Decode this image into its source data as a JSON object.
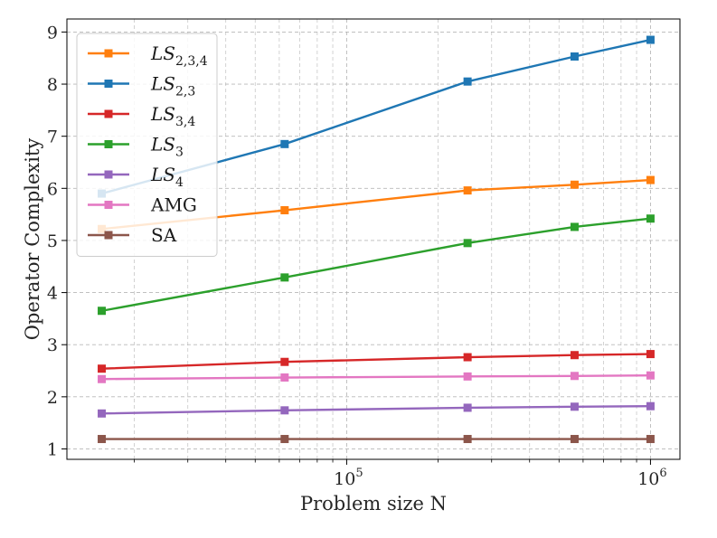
{
  "chart_data": {
    "type": "line",
    "xscale": "log",
    "xlabel": "Problem size N",
    "ylabel": "Operator Complexity",
    "xlim": [
      12000,
      1250000
    ],
    "ylim": [
      0.8,
      9.25
    ],
    "grid": true,
    "legend_position": "top-left",
    "x_major_ticks": [
      {
        "value": 100000,
        "base": "10",
        "exp": "5"
      },
      {
        "value": 1000000,
        "base": "10",
        "exp": "6"
      }
    ],
    "y_ticks": [
      1,
      2,
      3,
      4,
      5,
      6,
      7,
      8,
      9
    ],
    "x": [
      15625,
      62500,
      250000,
      562500,
      1000000
    ],
    "series": [
      {
        "name": "LS_{2,3,4}",
        "label_main": "LS",
        "label_sub": "2,3,4",
        "math": true,
        "color": "#ff7f0e",
        "values": [
          5.22,
          5.58,
          5.96,
          6.07,
          6.16
        ]
      },
      {
        "name": "LS_{2,3}",
        "label_main": "LS",
        "label_sub": "2,3",
        "math": true,
        "color": "#1f77b4",
        "values": [
          5.9,
          6.85,
          8.05,
          8.53,
          8.85
        ]
      },
      {
        "name": "LS_{3,4}",
        "label_main": "LS",
        "label_sub": "3,4",
        "math": true,
        "color": "#d62728",
        "values": [
          2.54,
          2.67,
          2.76,
          2.8,
          2.82
        ]
      },
      {
        "name": "LS_3",
        "label_main": "LS",
        "label_sub": "3",
        "math": true,
        "color": "#2ca02c",
        "values": [
          3.65,
          4.29,
          4.95,
          5.26,
          5.42
        ]
      },
      {
        "name": "LS_4",
        "label_main": "LS",
        "label_sub": "4",
        "math": true,
        "color": "#9467bd",
        "values": [
          1.68,
          1.74,
          1.79,
          1.81,
          1.82
        ]
      },
      {
        "name": "AMG",
        "label_main": "AMG",
        "label_sub": "",
        "math": false,
        "color": "#e377c2",
        "values": [
          2.34,
          2.37,
          2.39,
          2.4,
          2.41
        ]
      },
      {
        "name": "SA",
        "label_main": "SA",
        "label_sub": "",
        "math": false,
        "color": "#8c564b",
        "values": [
          1.19,
          1.19,
          1.19,
          1.19,
          1.19
        ]
      }
    ]
  }
}
